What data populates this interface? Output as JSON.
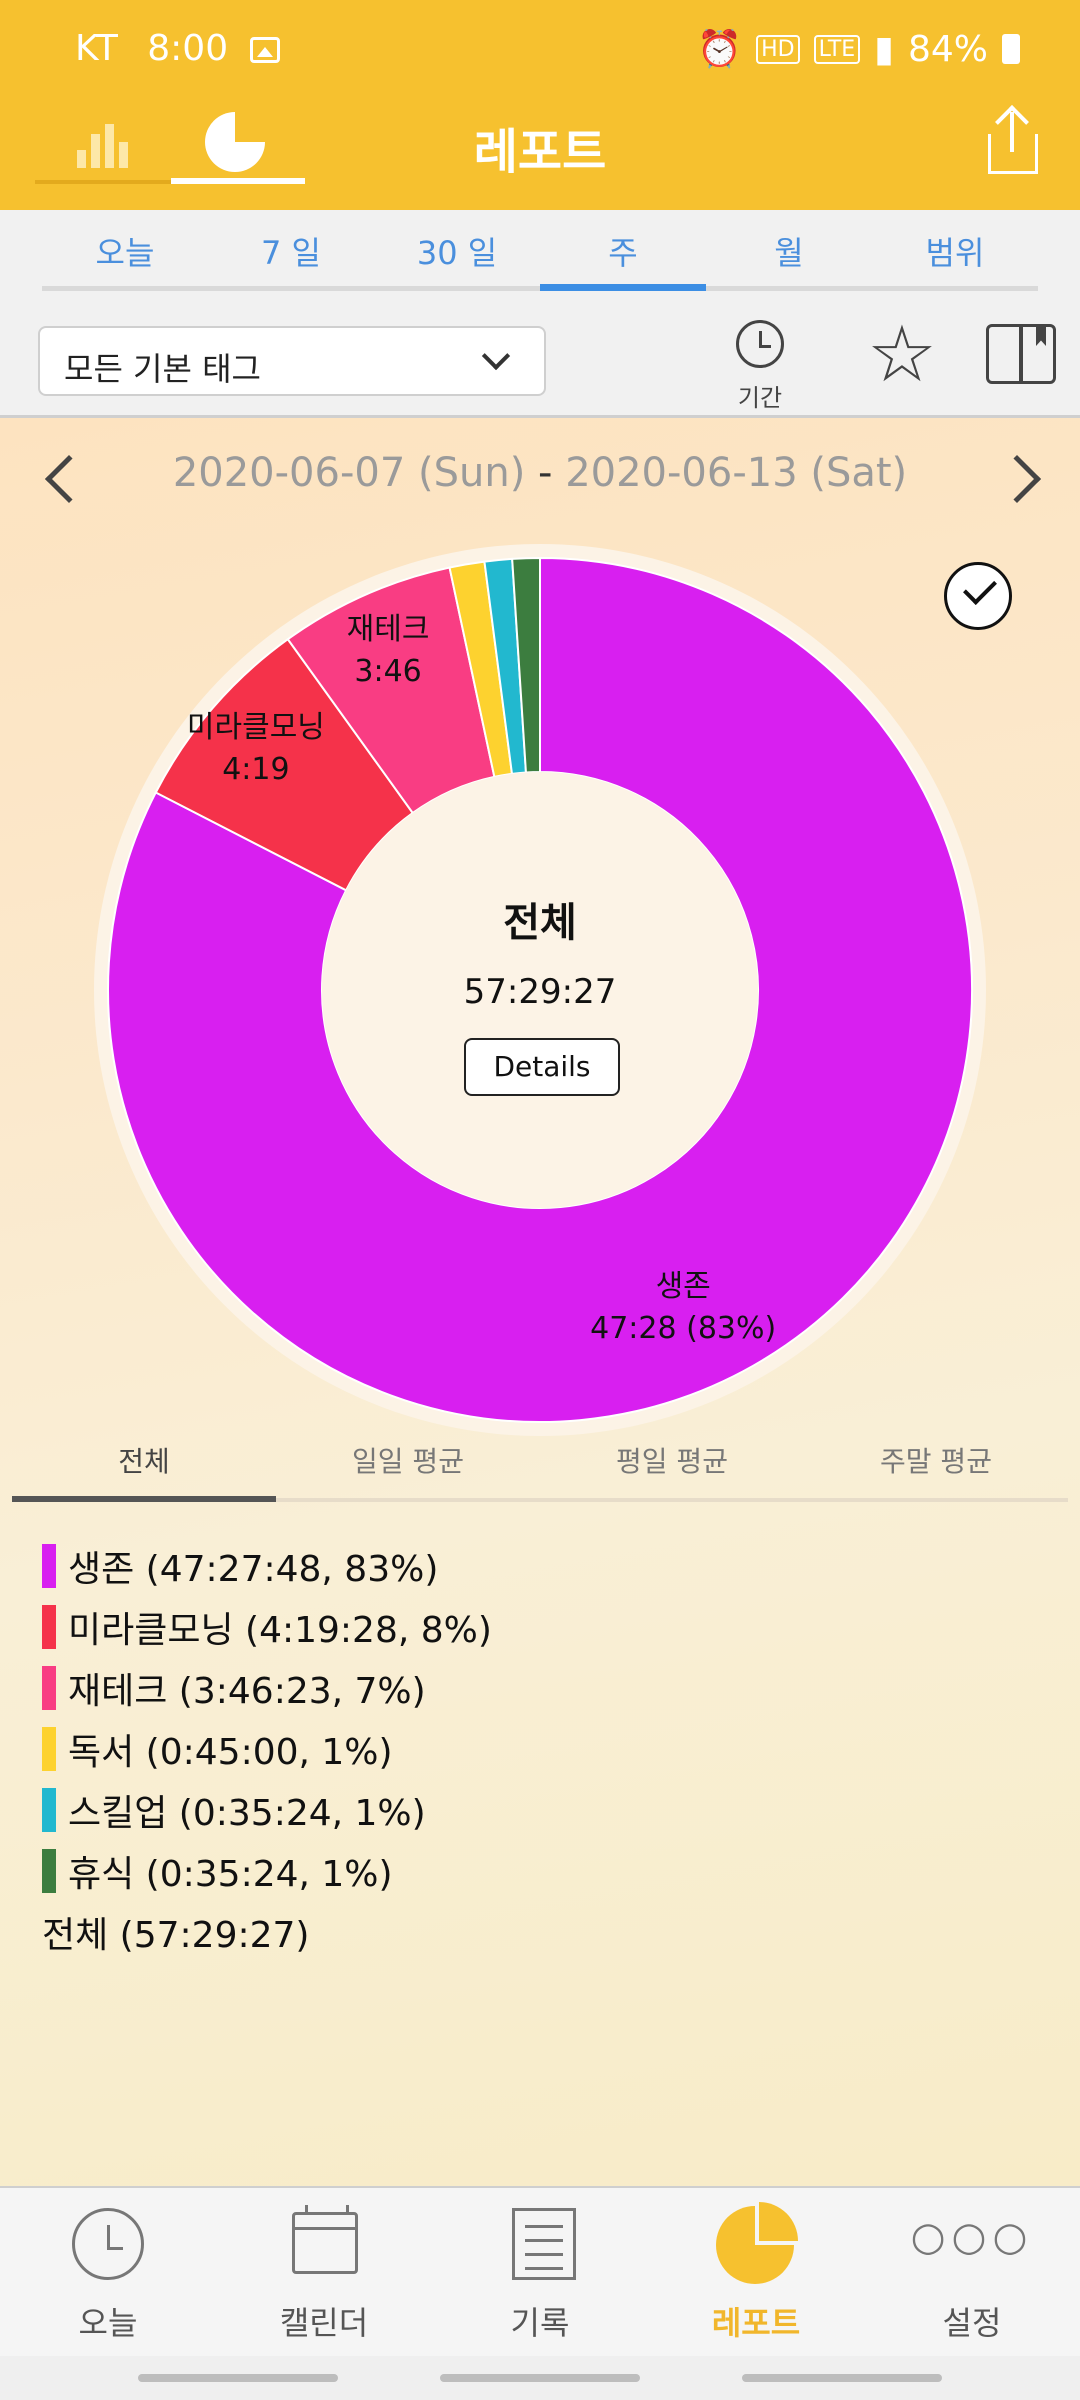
{
  "status_bar": {
    "carrier": "KT",
    "time": "8:00",
    "icons": [
      "image-icon",
      "alarm-icon",
      "hd-icon",
      "lte-icon",
      "signal-icon",
      "battery-icon"
    ],
    "battery": "84%",
    "hd_label": "HD",
    "lte_label": "LTE"
  },
  "header": {
    "title": "레포트",
    "view_toggle": [
      "bar-chart-icon",
      "pie-chart-icon"
    ],
    "active_view": "pie-chart-icon",
    "share_icon": "share-icon",
    "accent": "#f6c12f"
  },
  "range_tabs": {
    "items": [
      "오늘",
      "7 일",
      "30 일",
      "주",
      "월",
      "범위"
    ],
    "active": "주",
    "color": "#4a8fdd"
  },
  "filter": {
    "tag_select": "모든 기본 태그",
    "period_label": "기간",
    "star_icon": "star-icon",
    "book_icon": "book-icon"
  },
  "date_range": {
    "start": "2020-06-07 (Sun)",
    "separator": "-",
    "end": "2020-06-13 (Sat)"
  },
  "chart_data": {
    "type": "pie",
    "donut": true,
    "center_title": "전체",
    "center_total": "57:29:27",
    "details_label": "Details",
    "slices": [
      {
        "name": "생존",
        "hours": 47.4633,
        "percent": 83,
        "color": "#d81ff0",
        "label_line1": "생존",
        "label_line2": "47:28 (83%)"
      },
      {
        "name": "미라클모닝",
        "hours": 4.3244,
        "percent": 8,
        "color": "#f5324a",
        "label_line1": "미라클모닝",
        "label_line2": "4:19"
      },
      {
        "name": "재테크",
        "hours": 3.7731,
        "percent": 7,
        "color": "#f93d83",
        "label_line1": "재테크",
        "label_line2": "3:46"
      },
      {
        "name": "독서",
        "hours": 0.75,
        "percent": 1,
        "color": "#fdd22f",
        "label_line1": "",
        "label_line2": ""
      },
      {
        "name": "스킬업",
        "hours": 0.59,
        "percent": 1,
        "color": "#22b8cf",
        "label_line1": "",
        "label_line2": ""
      },
      {
        "name": "휴식",
        "hours": 0.59,
        "percent": 1,
        "color": "#3c7d3f",
        "label_line1": "",
        "label_line2": ""
      }
    ]
  },
  "stats_tabs": {
    "items": [
      "전체",
      "일일 평균",
      "평일 평균",
      "주말 평균"
    ],
    "active": "전체"
  },
  "legend": {
    "items": [
      {
        "text": "생존 (47:27:48, 83%)",
        "color": "#d81ff0"
      },
      {
        "text": "미라클모닝 (4:19:28, 8%)",
        "color": "#f5324a"
      },
      {
        "text": "재테크 (3:46:23, 7%)",
        "color": "#f93d83"
      },
      {
        "text": "독서 (0:45:00, 1%)",
        "color": "#fdd22f"
      },
      {
        "text": "스킬업 (0:35:24, 1%)",
        "color": "#22b8cf"
      },
      {
        "text": "휴식 (0:35:24, 1%)",
        "color": "#3c7d3f"
      }
    ],
    "total": "전체 (57:29:27)"
  },
  "bottom_nav": {
    "items": [
      {
        "label": "오늘",
        "icon": "clock-icon"
      },
      {
        "label": "캘린더",
        "icon": "calendar-icon"
      },
      {
        "label": "기록",
        "icon": "document-icon"
      },
      {
        "label": "레포트",
        "icon": "pie-chart-icon"
      },
      {
        "label": "설정",
        "icon": "more-icon"
      }
    ],
    "active": "레포트",
    "active_color": "#f1b62b"
  }
}
